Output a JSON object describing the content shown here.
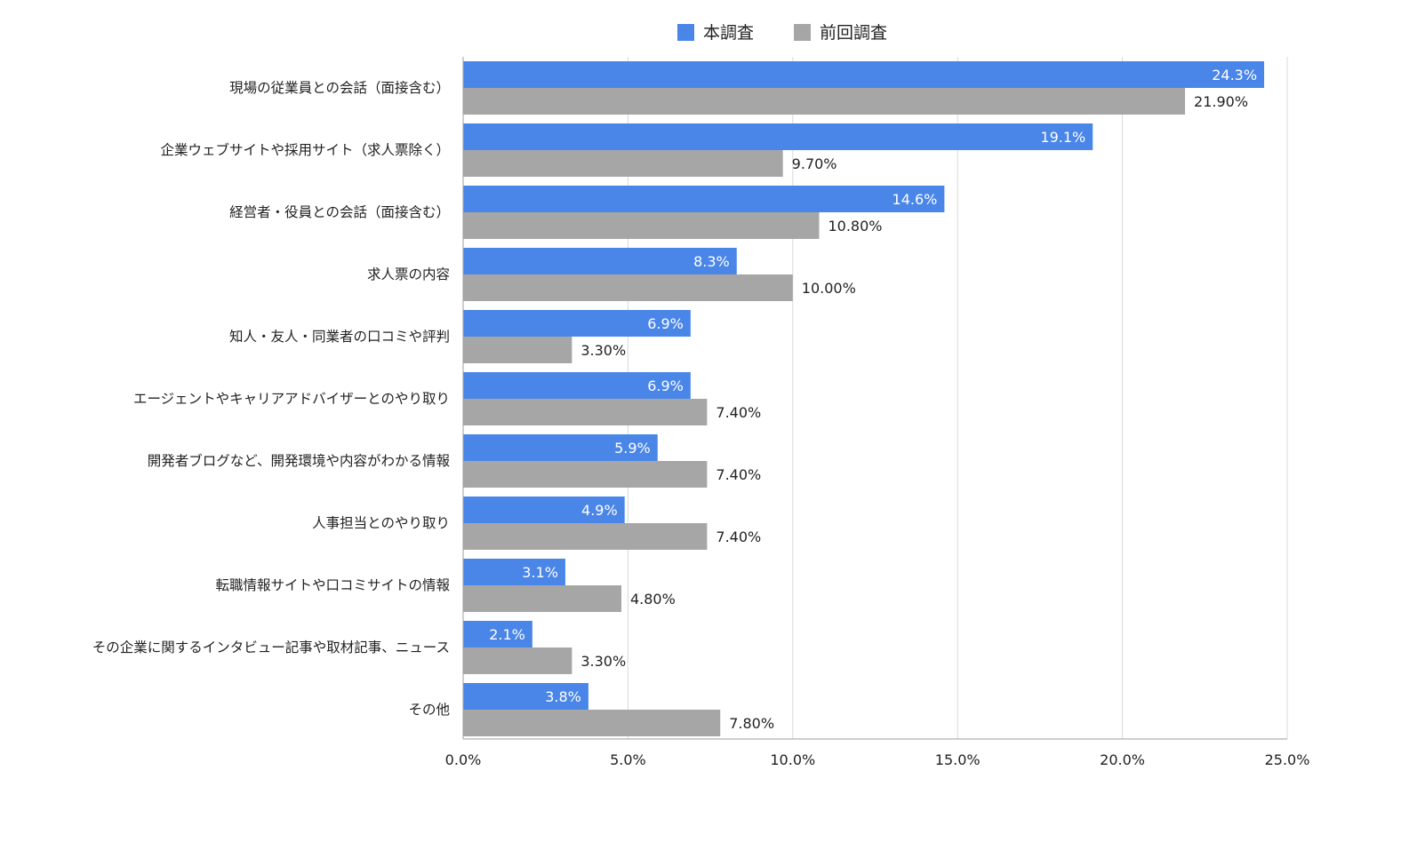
{
  "chart_data": {
    "type": "bar",
    "orientation": "horizontal",
    "categories": [
      "現場の従業員との会話（面接含む）",
      "企業ウェブサイトや採用サイト（求人票除く）",
      "経営者・役員との会話（面接含む）",
      "求人票の内容",
      "知人・友人・同業者の口コミや評判",
      "エージェントやキャリアアドバイザーとのやり取り",
      "開発者ブログなど、開発環境や内容がわかる情報",
      "人事担当とのやり取り",
      "転職情報サイトや口コミサイトの情報",
      "その企業に関するインタビュー記事や取材記事、ニュース",
      "その他"
    ],
    "series": [
      {
        "name": "本調査",
        "color": "#4a86e8",
        "values": [
          24.3,
          19.1,
          14.6,
          8.3,
          6.9,
          6.9,
          5.9,
          4.9,
          3.1,
          2.1,
          3.8
        ],
        "labels": [
          "24.3%",
          "19.1%",
          "14.6%",
          "8.3%",
          "6.9%",
          "6.9%",
          "5.9%",
          "4.9%",
          "3.1%",
          "2.1%",
          "3.8%"
        ]
      },
      {
        "name": "前回調査",
        "color": "#a6a6a6",
        "values": [
          21.9,
          9.7,
          10.8,
          10.0,
          3.3,
          7.4,
          7.4,
          7.4,
          4.8,
          3.3,
          7.8
        ],
        "labels": [
          "21.90%",
          "9.70%",
          "10.80%",
          "10.00%",
          "3.30%",
          "7.40%",
          "7.40%",
          "7.40%",
          "4.80%",
          "3.30%",
          "7.80%"
        ]
      }
    ],
    "xlim": [
      0,
      25
    ],
    "xticks": [
      "0.0%",
      "5.0%",
      "10.0%",
      "15.0%",
      "20.0%",
      "25.0%"
    ],
    "grid": true,
    "legend_position": "top-center"
  }
}
